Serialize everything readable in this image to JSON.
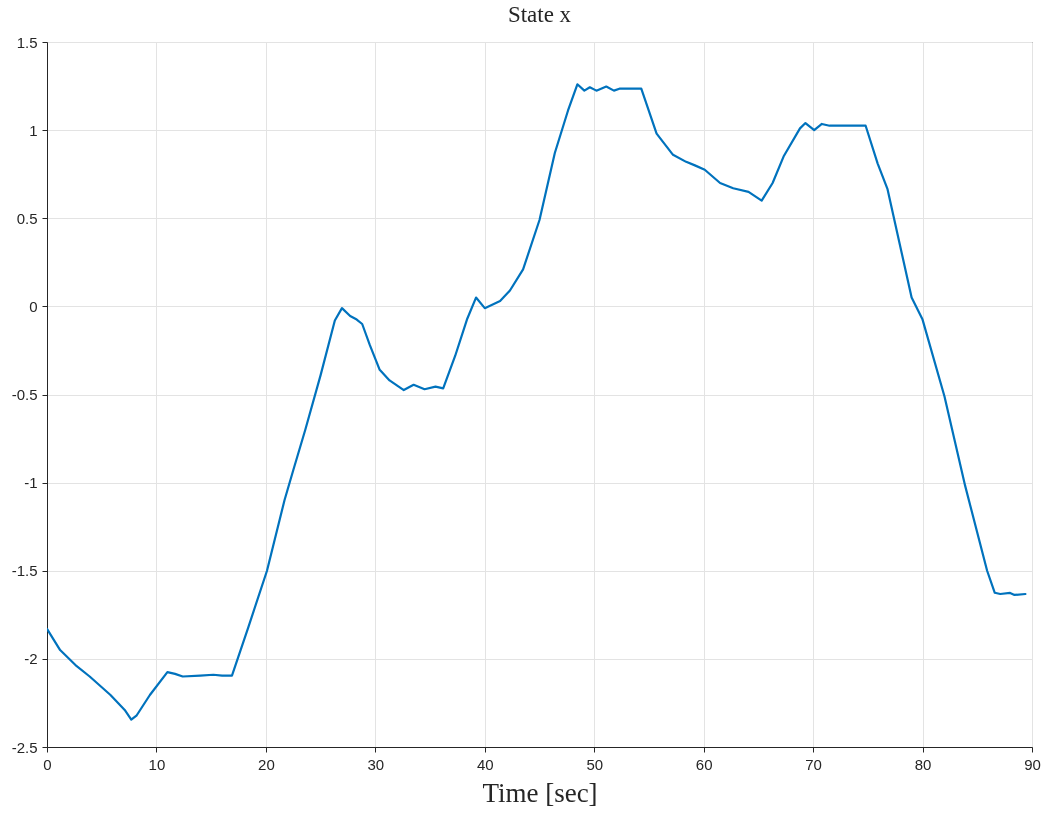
{
  "chart_data": {
    "type": "line",
    "title": "State x",
    "xlabel": "Time [sec]",
    "x": [
      0,
      1.2,
      2.6,
      3.9,
      5.8,
      7.1,
      7.7,
      8.2,
      9.4,
      11.0,
      11.7,
      12.4,
      14.0,
      15.2,
      16.0,
      16.9,
      18.4,
      20.1,
      21.7,
      22.5,
      23.6,
      25.0,
      26.3,
      26.95,
      27.7,
      28.3,
      28.8,
      29.5,
      30.4,
      31.3,
      32.6,
      33.5,
      34.5,
      35.5,
      36.2,
      37.3,
      38.4,
      39.2,
      40.0,
      41.4,
      42.3,
      43.5,
      45.0,
      46.4,
      47.6,
      48.46,
      49.1,
      49.6,
      50.2,
      51.1,
      51.8,
      52.3,
      54.3,
      55.7,
      57.2,
      58.4,
      59.2,
      60.1,
      61.5,
      62.7,
      64.1,
      65.3,
      66.3,
      67.3,
      68.8,
      69.3,
      70.1,
      70.8,
      71.5,
      73.4,
      74.8,
      75.9,
      76.8,
      79.0,
      80.0,
      82.0,
      83.9,
      85.9,
      86.6,
      87.1,
      88.0,
      88.4,
      89.4
    ],
    "series": [
      {
        "color": "#0072bd",
        "values": [
          -1.83,
          -1.95,
          -2.035,
          -2.1,
          -2.205,
          -2.29,
          -2.345,
          -2.32,
          -2.205,
          -2.075,
          -2.085,
          -2.1,
          -2.095,
          -2.09,
          -2.095,
          -2.095,
          -1.82,
          -1.5,
          -1.1,
          -0.93,
          -0.7,
          -0.39,
          -0.08,
          -0.01,
          -0.055,
          -0.075,
          -0.1,
          -0.22,
          -0.36,
          -0.42,
          -0.475,
          -0.445,
          -0.47,
          -0.455,
          -0.465,
          -0.28,
          -0.07,
          0.05,
          -0.01,
          0.03,
          0.09,
          0.21,
          0.49,
          0.87,
          1.11,
          1.26,
          1.224,
          1.243,
          1.224,
          1.247,
          1.224,
          1.235,
          1.235,
          0.98,
          0.86,
          0.82,
          0.8,
          0.775,
          0.7,
          0.67,
          0.65,
          0.6,
          0.7,
          0.85,
          1.01,
          1.04,
          1.0,
          1.035,
          1.025,
          1.025,
          1.025,
          0.81,
          0.665,
          0.05,
          -0.075,
          -0.51,
          -1.02,
          -1.5,
          -1.625,
          -1.632,
          -1.626,
          -1.637,
          -1.632
        ]
      }
    ],
    "xlim": [
      0,
      90
    ],
    "ylim": [
      -2.5,
      1.5
    ],
    "xticks": [
      0,
      10,
      20,
      30,
      40,
      50,
      60,
      70,
      80,
      90
    ],
    "yticks": [
      -2.5,
      -2,
      -1.5,
      -1,
      -0.5,
      0,
      0.5,
      1,
      1.5
    ],
    "grid": true,
    "line_style": "solid"
  }
}
